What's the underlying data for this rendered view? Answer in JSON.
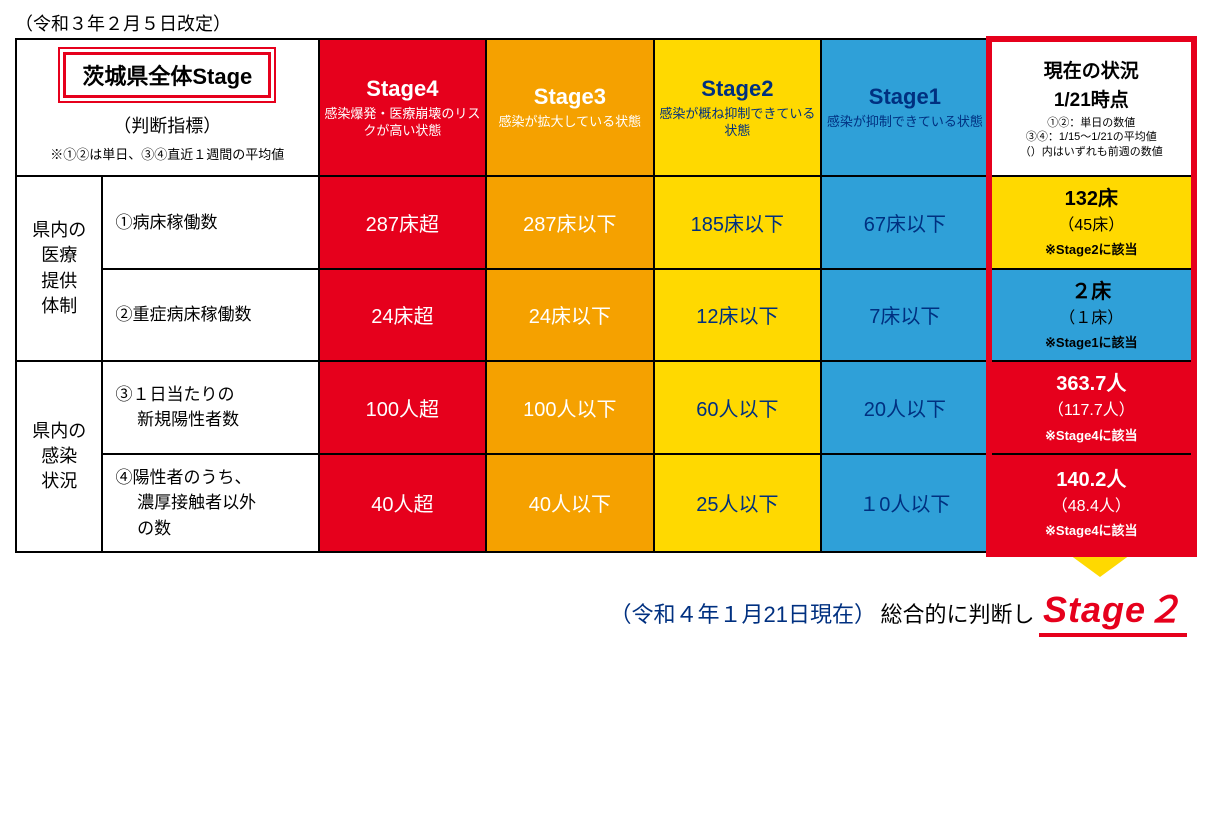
{
  "revision_date": "（令和３年２月５日改定）",
  "header": {
    "title": "茨城県全体Stage",
    "subtitle": "（判断指標）",
    "note": "※①②は単日、③④直近１週間の平均値"
  },
  "stages": {
    "s4": {
      "name": "Stage4",
      "desc": "感染爆発・医療崩壊のリスクが高い状態",
      "bg": "#e6001c",
      "fg": "#ffffff"
    },
    "s3": {
      "name": "Stage3",
      "desc": "感染が拡大している状態",
      "bg": "#f5a100",
      "fg": "#ffffff"
    },
    "s2": {
      "name": "Stage2",
      "desc": "感染が概ね抑制できている状態",
      "bg": "#ffd900",
      "fg": "#003080"
    },
    "s1": {
      "name": "Stage1",
      "desc": "感染が抑制できている状態",
      "bg": "#2fa0d8",
      "fg": "#003080"
    }
  },
  "current_header": {
    "title": "現在の状況",
    "sub": "1/21時点",
    "note1": "①②：単日の数値",
    "note2": "③④：1/15～1/21の平均値",
    "note3": "（）内はいずれも前週の数値"
  },
  "groups": {
    "g1": "県内の医療提供体制",
    "g2": "県内の感染状況"
  },
  "rows": [
    {
      "label": "①病床稼働数",
      "s4": "287床超",
      "s3": "287床以下",
      "s2": "185床以下",
      "s1": "67床以下",
      "current": {
        "main": "132床",
        "prev": "（45床）",
        "note": "※Stage2に該当",
        "bg": "#ffd900",
        "textclass": "current-black"
      }
    },
    {
      "label": "②重症病床稼働数",
      "s4": "24床超",
      "s3": "24床以下",
      "s2": "12床以下",
      "s1": "7床以下",
      "current": {
        "main": "２床",
        "prev": "（１床）",
        "note": "※Stage1に該当",
        "bg": "#2fa0d8",
        "textclass": "current-black"
      }
    },
    {
      "label": "③１日当たりの\n　 新規陽性者数",
      "s4": "100人超",
      "s3": "100人以下",
      "s2": "60人以下",
      "s1": "20人以下",
      "current": {
        "main": "363.7人",
        "prev": "（117.7人）",
        "note": "※Stage4に該当",
        "bg": "#e6001c",
        "textclass": "current-white"
      }
    },
    {
      "label": "④陽性者のうち、\n　 濃厚接触者以外\n　 の数",
      "s4": "40人超",
      "s3": "40人以下",
      "s2": "25人以下",
      "s1": "１0人以下",
      "current": {
        "main": "140.2人",
        "prev": "（48.4人）",
        "note": "※Stage4に該当",
        "bg": "#e6001c",
        "textclass": "current-white"
      }
    }
  ],
  "footer": {
    "text1": "（令和４年１月21日現在）",
    "text2": "総合的に判断し",
    "stage": "Stage２"
  },
  "colors": {
    "red": "#e6001c",
    "orange": "#f5a100",
    "yellow": "#ffd900",
    "blue": "#2fa0d8",
    "navy": "#003080"
  }
}
